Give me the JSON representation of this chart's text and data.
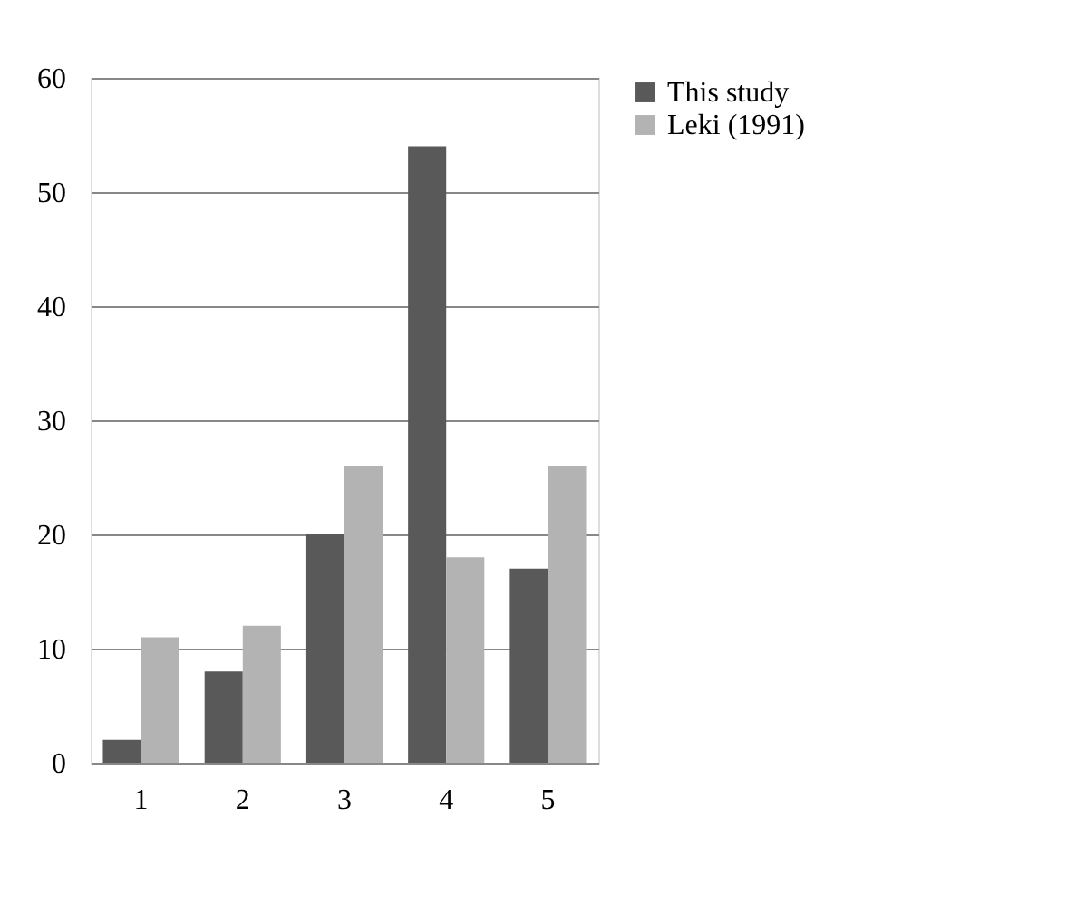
{
  "chart_data": {
    "type": "bar",
    "categories": [
      "1",
      "2",
      "3",
      "4",
      "5"
    ],
    "series": [
      {
        "name": "This study",
        "color": "#595959",
        "values": [
          2,
          8,
          20,
          54,
          17
        ]
      },
      {
        "name": "Leki (1991)",
        "color": "#b3b3b3",
        "values": [
          11,
          12,
          26,
          18,
          26
        ]
      }
    ],
    "ylim": [
      0,
      60
    ],
    "yticks": [
      0,
      10,
      20,
      30,
      40,
      50,
      60
    ],
    "grid": "y",
    "legend": "right"
  }
}
